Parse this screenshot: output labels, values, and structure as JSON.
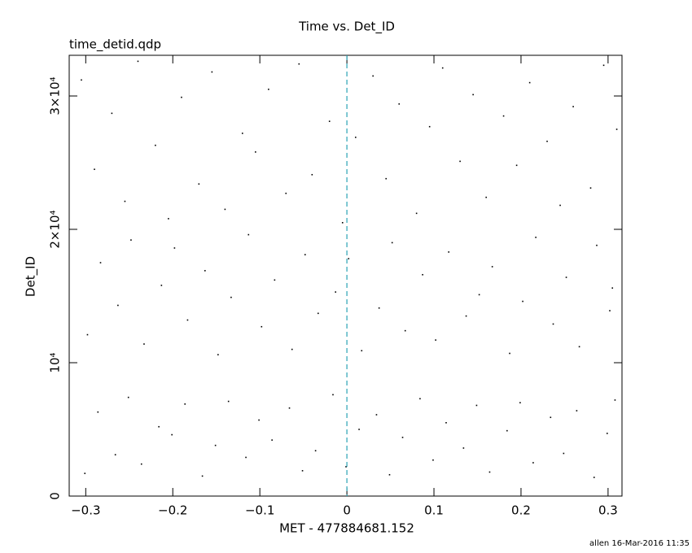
{
  "chart_data": {
    "type": "scatter",
    "title": "Time vs. Det_ID",
    "subtitle": "time_detid.qdp",
    "x_label": "MET - 477884681.152",
    "y_label": "Det_ID",
    "footer": "allen 16-Mar-2016 11:35",
    "xlim": [
      -0.319,
      0.316
    ],
    "ylim": [
      0,
      33050
    ],
    "xticks": [
      {
        "value": -0.3,
        "label": "−0.3"
      },
      {
        "value": -0.2,
        "label": "−0.2"
      },
      {
        "value": -0.1,
        "label": "−0.1"
      },
      0,
      0.1,
      0.2,
      0.3
    ],
    "yticks": [
      0,
      {
        "value": 10000,
        "label": "10⁴"
      },
      {
        "value": 20000,
        "label": "2×10⁴"
      },
      {
        "value": 30000,
        "label": "3×10⁴"
      }
    ],
    "vline": {
      "x": 0,
      "color": "#2aa3b5"
    },
    "series": [
      {
        "color": "#000000",
        "x": [
          -0.305,
          -0.29,
          -0.27,
          -0.255,
          -0.24,
          -0.22,
          -0.205,
          -0.19,
          -0.17,
          -0.155,
          -0.14,
          -0.12,
          -0.105,
          -0.09,
          -0.07,
          -0.055,
          -0.04,
          -0.02,
          -0.005,
          0.01,
          0.03,
          0.045,
          0.06,
          0.08,
          0.095,
          0.11,
          0.13,
          0.145,
          0.16,
          0.18,
          0.195,
          0.21,
          0.23,
          0.245,
          0.26,
          0.28,
          0.295,
          0.31,
          -0.298,
          -0.283,
          -0.263,
          -0.248,
          -0.233,
          -0.213,
          -0.198,
          -0.183,
          -0.163,
          -0.148,
          -0.133,
          -0.113,
          -0.098,
          -0.083,
          -0.063,
          -0.048,
          -0.033,
          -0.013,
          0.002,
          0.017,
          0.037,
          0.052,
          0.067,
          0.087,
          0.102,
          0.117,
          0.137,
          0.152,
          0.167,
          0.187,
          0.202,
          0.217,
          0.237,
          0.252,
          0.267,
          0.287,
          0.302,
          0.305,
          -0.301,
          -0.286,
          -0.266,
          -0.251,
          -0.236,
          -0.216,
          -0.201,
          -0.186,
          -0.166,
          -0.151,
          -0.136,
          -0.116,
          -0.101,
          -0.086,
          -0.066,
          -0.051,
          -0.036,
          -0.016,
          -0.001,
          0.014,
          0.034,
          0.049,
          0.064,
          0.084,
          0.099,
          0.114,
          0.134,
          0.149,
          0.164,
          0.184,
          0.199,
          0.214,
          0.234,
          0.249,
          0.264,
          0.284,
          0.299,
          0.308
        ],
        "y": [
          31200,
          24500,
          28700,
          22100,
          32600,
          26300,
          20800,
          29900,
          23400,
          31800,
          21500,
          27200,
          25800,
          30500,
          22700,
          32400,
          24100,
          28100,
          20500,
          26900,
          31500,
          23800,
          29400,
          21200,
          27700,
          32100,
          25100,
          30100,
          22400,
          28500,
          24800,
          31000,
          26600,
          21800,
          29200,
          23100,
          32300,
          27500,
          12100,
          17500,
          14300,
          19200,
          11400,
          15800,
          18600,
          13200,
          16900,
          10600,
          14900,
          19600,
          12700,
          16200,
          11000,
          18100,
          13700,
          15300,
          17800,
          10900,
          14100,
          19000,
          12400,
          16600,
          11700,
          18300,
          13500,
          15100,
          17200,
          10700,
          14600,
          19400,
          12900,
          16400,
          11200,
          18800,
          13900,
          15600,
          1700,
          6300,
          3100,
          7400,
          2400,
          5200,
          4600,
          6900,
          1500,
          3800,
          7100,
          2900,
          5700,
          4200,
          6600,
          1900,
          3400,
          7600,
          2200,
          5000,
          6100,
          1600,
          4400,
          7300,
          2700,
          5500,
          3600,
          6800,
          1800,
          4900,
          7000,
          2500,
          5900,
          3200,
          6400,
          1400,
          4700,
          7200
        ]
      }
    ]
  }
}
